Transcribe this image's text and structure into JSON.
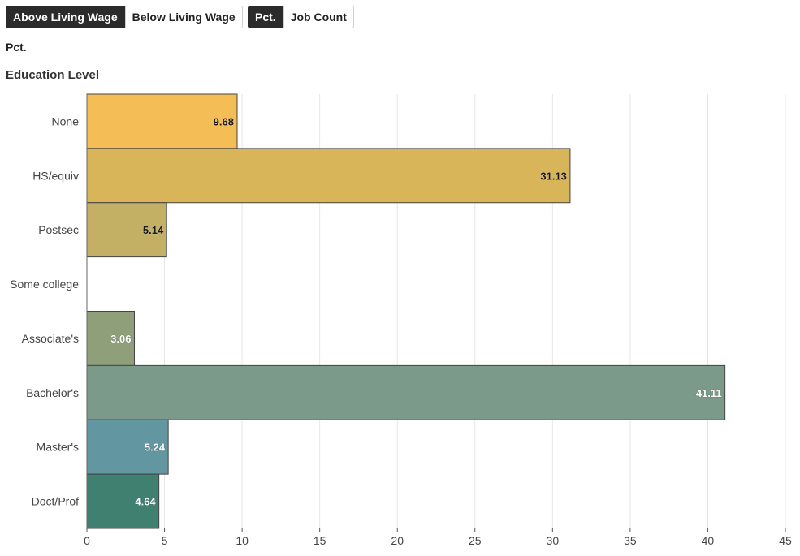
{
  "controls": {
    "wage_toggle": [
      {
        "label": "Above Living Wage",
        "active": true
      },
      {
        "label": "Below Living Wage",
        "active": false
      }
    ],
    "metric_toggle": [
      {
        "label": "Pct.",
        "active": true
      },
      {
        "label": "Job Count",
        "active": false
      }
    ]
  },
  "metric_label": "Pct.",
  "chart_data": {
    "type": "bar",
    "orientation": "horizontal",
    "ylabel": "Education Level",
    "categories": [
      "None",
      "HS/equiv",
      "Postsec",
      "Some college",
      "Associate's",
      "Bachelor's",
      "Master's",
      "Doct/Prof"
    ],
    "values": [
      9.68,
      31.13,
      5.14,
      0,
      3.06,
      41.11,
      5.24,
      4.64
    ],
    "data_labels": [
      "9.68",
      "31.13",
      "5.14",
      "",
      "3.06",
      "41.11",
      "5.24",
      "4.64"
    ],
    "colors": [
      "#f5bd55",
      "#d9b55a",
      "#c4b064",
      "#b8b27a",
      "#8e9f7a",
      "#7b9a8a",
      "#6296a1",
      "#3f8070"
    ],
    "label_colors": [
      "#1a1a1a",
      "#1a1a1a",
      "#1a1a1a",
      "#1a1a1a",
      "#ffffff",
      "#ffffff",
      "#ffffff",
      "#ffffff"
    ],
    "xlim": [
      0,
      45
    ],
    "xticks": [
      0,
      5,
      10,
      15,
      20,
      25,
      30,
      35,
      40,
      45
    ],
    "grid": true
  }
}
